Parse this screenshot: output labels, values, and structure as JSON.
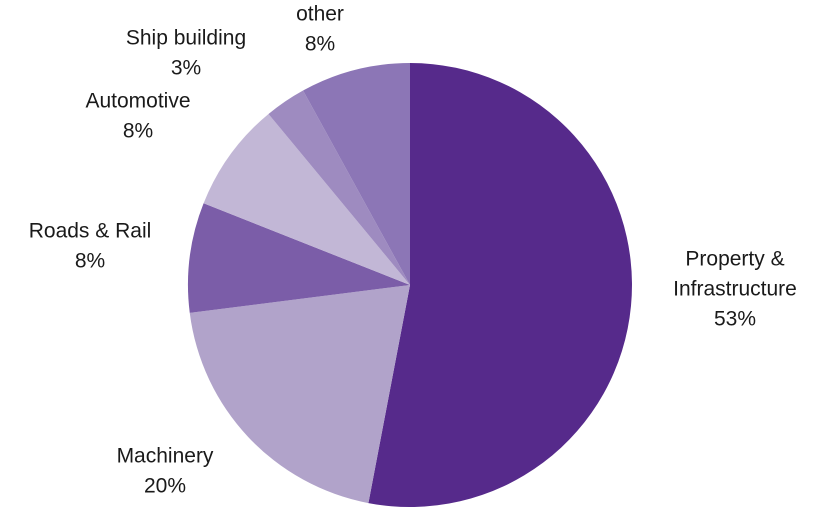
{
  "chart_data": {
    "type": "pie",
    "title": "",
    "start": "12 o'clock",
    "direction": "clockwise",
    "slices": [
      {
        "name": "Property & Infrastructure",
        "label_lines": [
          "Property &",
          "Infrastructure"
        ],
        "value": 53,
        "value_label": "53%",
        "color": "#562a8b"
      },
      {
        "name": "Machinery",
        "label_lines": [
          "Machinery"
        ],
        "value": 20,
        "value_label": "20%",
        "color": "#b1a3ca"
      },
      {
        "name": "Roads & Rail",
        "label_lines": [
          "Roads & Rail"
        ],
        "value": 8,
        "value_label": "8%",
        "color": "#7b5da8"
      },
      {
        "name": "Automotive",
        "label_lines": [
          "Automotive"
        ],
        "value": 8,
        "value_label": "8%",
        "color": "#c2b7d6"
      },
      {
        "name": "Ship building",
        "label_lines": [
          "Ship building"
        ],
        "value": 3,
        "value_label": "3%",
        "color": "#9e8bc0"
      },
      {
        "name": "other",
        "label_lines": [
          "other"
        ],
        "value": 8,
        "value_label": "8%",
        "color": "#8c76b6"
      }
    ]
  }
}
